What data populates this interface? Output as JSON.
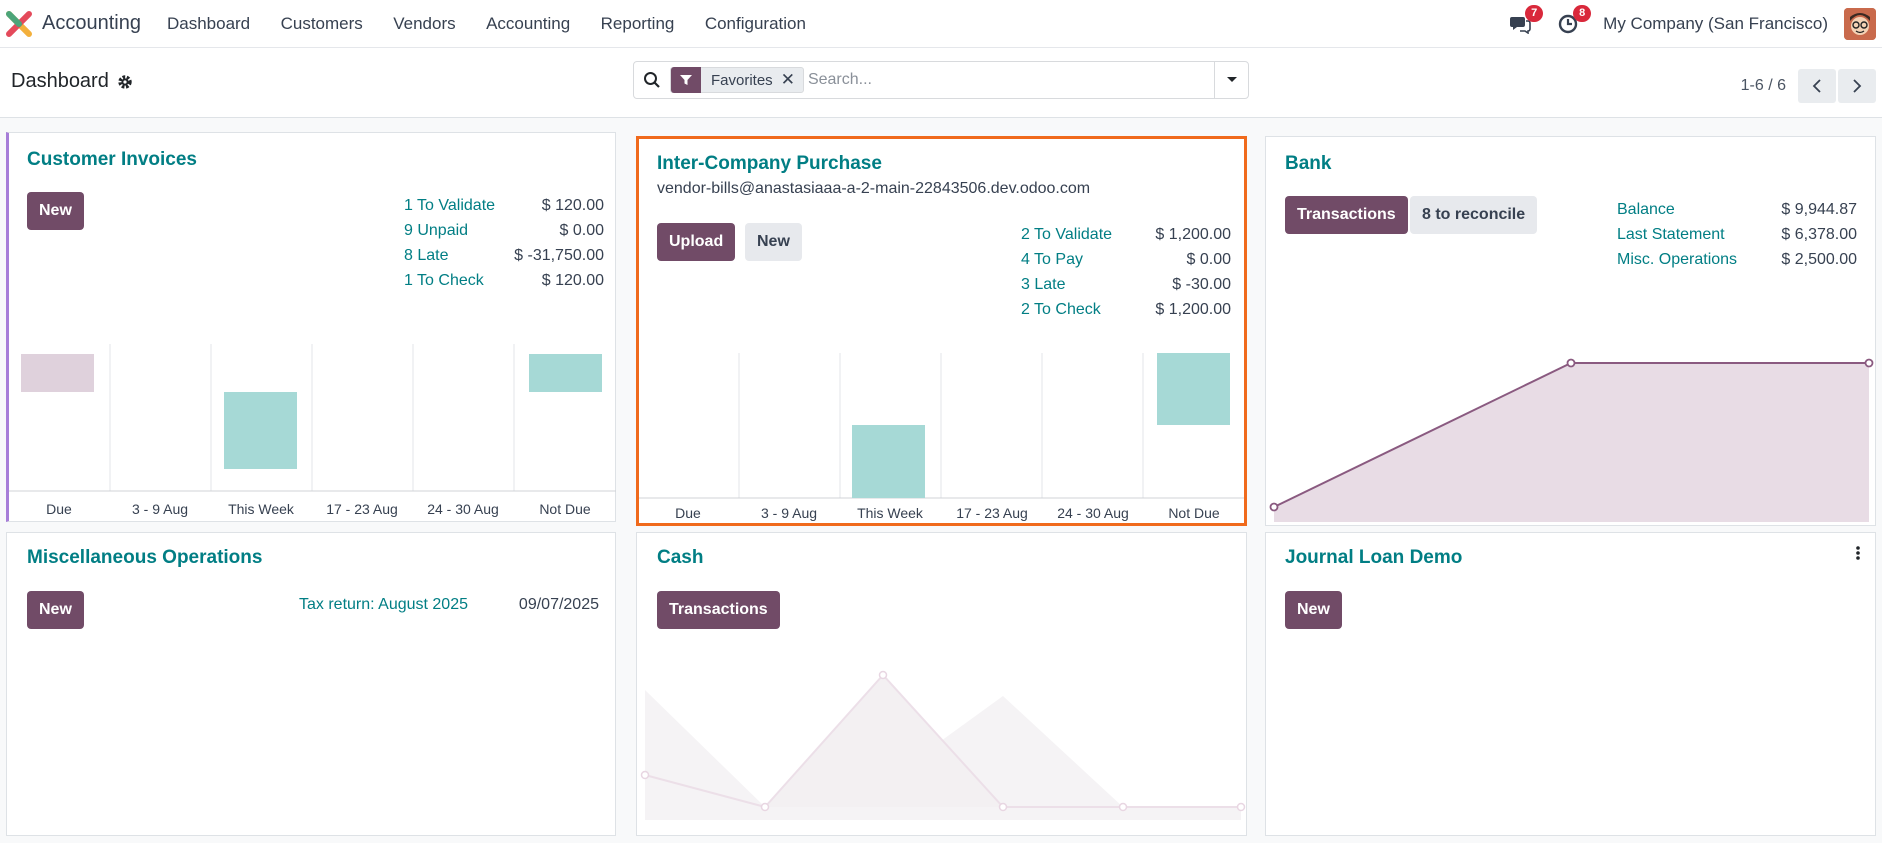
{
  "topbar": {
    "app_name": "Accounting",
    "nav": [
      "Dashboard",
      "Customers",
      "Vendors",
      "Accounting",
      "Reporting",
      "Configuration"
    ],
    "messages_count": "7",
    "activities_count": "8",
    "company": "My Company (San Francisco)"
  },
  "controlbar": {
    "title": "Dashboard",
    "facet": "Favorites",
    "search_placeholder": "Search...",
    "pager": "1-6 / 6"
  },
  "cards": {
    "customer_invoices": {
      "title": "Customer Invoices",
      "new_label": "New",
      "stats": [
        {
          "label": "1 To Validate",
          "value": "$ 120.00"
        },
        {
          "label": "9 Unpaid",
          "value": "$ 0.00"
        },
        {
          "label": "8 Late",
          "value": "$ -31,750.00"
        },
        {
          "label": "1 To Check",
          "value": "$ 120.00"
        }
      ],
      "x_labels": [
        "Due",
        "3 - 9 Aug",
        "This Week",
        "17 - 23 Aug",
        "24 - 30 Aug",
        "Not Due"
      ]
    },
    "intercompany": {
      "title": "Inter-Company Purchase",
      "email": "vendor-bills@anastasiaaa-a-2-main-22843506.dev.odoo.com",
      "upload_label": "Upload",
      "new_label": "New",
      "stats": [
        {
          "label": "2 To Validate",
          "value": "$ 1,200.00"
        },
        {
          "label": "4 To Pay",
          "value": "$ 0.00"
        },
        {
          "label": "3 Late",
          "value": "$ -30.00"
        },
        {
          "label": "2 To Check",
          "value": "$ 1,200.00"
        }
      ],
      "x_labels": [
        "Due",
        "3 - 9 Aug",
        "This Week",
        "17 - 23 Aug",
        "24 - 30 Aug",
        "Not Due"
      ]
    },
    "bank": {
      "title": "Bank",
      "transactions_label": "Transactions",
      "reconcile_label": "8 to reconcile",
      "stats": [
        {
          "label": "Balance",
          "value": "$ 9,944.87"
        },
        {
          "label": "Last Statement",
          "value": "$ 6,378.00"
        },
        {
          "label": "Misc. Operations",
          "value": "$ 2,500.00"
        }
      ]
    },
    "misc": {
      "title": "Miscellaneous Operations",
      "new_label": "New",
      "tax_label": "Tax return: August 2025",
      "tax_date": "09/07/2025"
    },
    "cash": {
      "title": "Cash",
      "transactions_label": "Transactions"
    },
    "loan": {
      "title": "Journal Loan Demo",
      "new_label": "New"
    }
  },
  "colors": {
    "primary": "#714b67",
    "teal": "#017e84",
    "bar_teal": "#a6d9d6",
    "bar_mauve": "#dfd1dc",
    "highlight": "#f06a1c"
  }
}
